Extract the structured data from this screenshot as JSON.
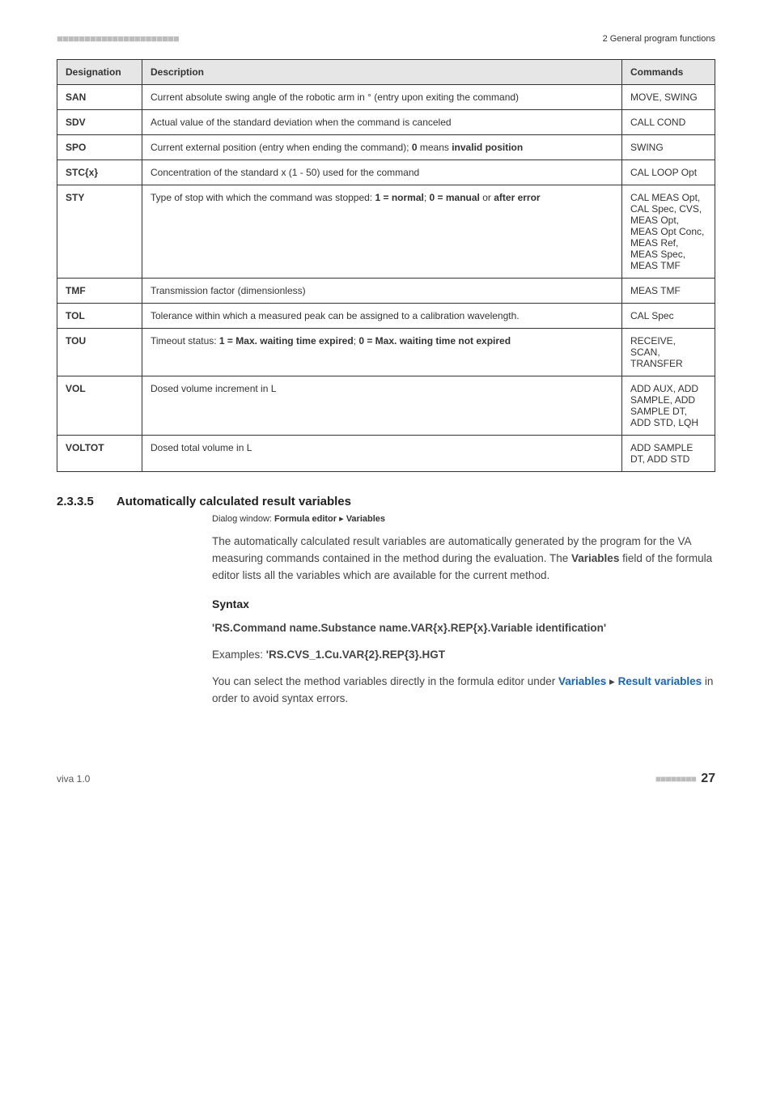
{
  "header": {
    "dashes": "■■■■■■■■■■■■■■■■■■■■■■",
    "section_label": "2 General program functions"
  },
  "table": {
    "columns": [
      "Designation",
      "Description",
      "Commands"
    ],
    "rows": [
      {
        "designation": "SAN",
        "description_parts": [
          {
            "text": "Current absolute swing angle of the robotic arm in ° (entry upon exiting the command)",
            "bold": false
          }
        ],
        "commands": "MOVE, SWING"
      },
      {
        "designation": "SDV",
        "description_parts": [
          {
            "text": "Actual value of the standard deviation when the command is canceled",
            "bold": false
          }
        ],
        "commands": "CALL COND"
      },
      {
        "designation": "SPO",
        "description_parts": [
          {
            "text": "Current external position (entry when ending the command); ",
            "bold": false
          },
          {
            "text": "0",
            "bold": true
          },
          {
            "text": " means ",
            "bold": false
          },
          {
            "text": "invalid position",
            "bold": true
          }
        ],
        "commands": "SWING"
      },
      {
        "designation": "STC{x}",
        "description_parts": [
          {
            "text": "Concentration of the standard x (1 - 50) used for the command",
            "bold": false
          }
        ],
        "commands": "CAL LOOP Opt"
      },
      {
        "designation": "STY",
        "description_parts": [
          {
            "text": "Type of stop with which the command was stopped: ",
            "bold": false
          },
          {
            "text": "1 = normal",
            "bold": true
          },
          {
            "text": "; ",
            "bold": false
          },
          {
            "text": "0 = manual",
            "bold": true
          },
          {
            "text": " or ",
            "bold": false
          },
          {
            "text": "after error",
            "bold": true
          }
        ],
        "commands": "CAL MEAS Opt, CAL Spec, CVS, MEAS Opt, MEAS Opt Conc, MEAS Ref, MEAS Spec, MEAS TMF"
      },
      {
        "designation": "TMF",
        "description_parts": [
          {
            "text": "Transmission factor (dimensionless)",
            "bold": false
          }
        ],
        "commands": "MEAS TMF"
      },
      {
        "designation": "TOL",
        "description_parts": [
          {
            "text": "Tolerance within which a measured peak can be assigned to a calibration wavelength.",
            "bold": false
          }
        ],
        "commands": "CAL Spec"
      },
      {
        "designation": "TOU",
        "description_parts": [
          {
            "text": "Timeout status: ",
            "bold": false
          },
          {
            "text": "1 = Max. waiting time expired",
            "bold": true
          },
          {
            "text": "; ",
            "bold": false
          },
          {
            "text": "0 = Max. waiting time not expired",
            "bold": true
          }
        ],
        "commands": "RECEIVE, SCAN, TRANSFER"
      },
      {
        "designation": "VOL",
        "description_parts": [
          {
            "text": "Dosed volume increment in L",
            "bold": false
          }
        ],
        "commands": "ADD AUX, ADD SAMPLE, ADD SAMPLE DT, ADD STD, LQH"
      },
      {
        "designation": "VOLTOT",
        "description_parts": [
          {
            "text": "Dosed total volume in L",
            "bold": false
          }
        ],
        "commands": "ADD SAMPLE DT, ADD STD"
      }
    ]
  },
  "section": {
    "number": "2.3.3.5",
    "title": "Automatically calculated result variables",
    "dialog_prefix": "Dialog window: ",
    "dialog_bold_1": "Formula editor",
    "dialog_sep": " ▸ ",
    "dialog_bold_2": "Variables",
    "para1_a": "The automatically calculated result variables are automatically generated by the program for the VA measuring commands contained in the method during the evaluation. The ",
    "para1_bold": "Variables",
    "para1_b": " field of the formula editor lists all the variables which are available for the current method.",
    "syntax_head": "Syntax",
    "syntax_line": "'RS.Command name.Substance name.VAR{x}.REP{x}.Variable identification'",
    "examples_label": "Examples: ",
    "examples_value": "'RS.CVS_1.Cu.VAR{2}.REP{3}.HGT",
    "para2_a": "You can select the method variables directly in the formula editor under ",
    "para2_link1": "Variables",
    "para2_sep": " ▸ ",
    "para2_link2": "Result variables",
    "para2_b": " in order to avoid syntax errors."
  },
  "footer": {
    "left": "viva 1.0",
    "squares": "■■■■■■■■",
    "page": "27"
  },
  "style": {
    "header_bg": "#e6e6e6",
    "border_color": "#333333",
    "link_color": "#1565c0"
  }
}
